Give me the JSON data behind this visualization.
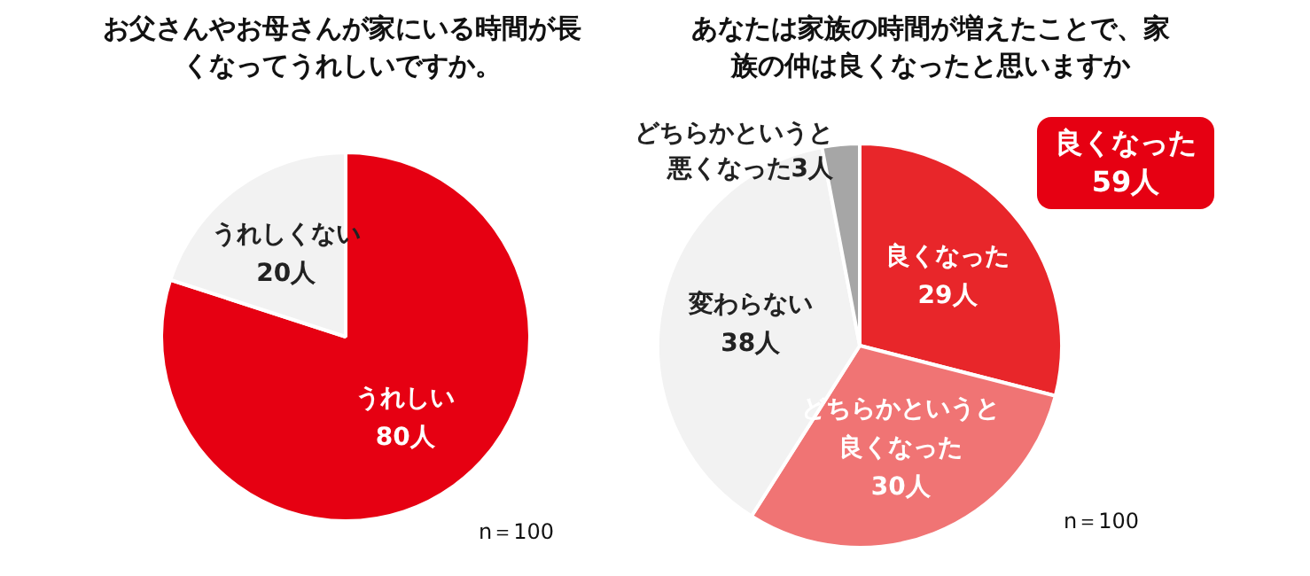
{
  "chart_data": [
    {
      "type": "pie",
      "title": "お父さんやお母さんが家にいる時間が長くなってうれしいですか。",
      "categories": [
        "うれしい",
        "うれしくない"
      ],
      "values": [
        80,
        20
      ],
      "value_labels": [
        "80人",
        "20人"
      ],
      "colors": [
        "#e60012",
        "#f2f2f2"
      ],
      "legend": false,
      "annotations": [
        "n＝100"
      ]
    },
    {
      "type": "pie",
      "title": "あなたは家族の時間が増えたことで、家族の仲は良くなったと思いますか",
      "categories": [
        "良くなった",
        "どちらかというと良くなった",
        "変わらない",
        "どちらかというと悪くなった"
      ],
      "values": [
        29,
        30,
        38,
        3
      ],
      "value_labels": [
        "29人",
        "30人",
        "38人",
        "3人"
      ],
      "colors": [
        "#e8262a",
        "#f07474",
        "#f2f2f2",
        "#a6a6a6"
      ],
      "legend": false,
      "annotations": [
        "n＝100",
        "良くなった\n59人"
      ]
    }
  ]
}
